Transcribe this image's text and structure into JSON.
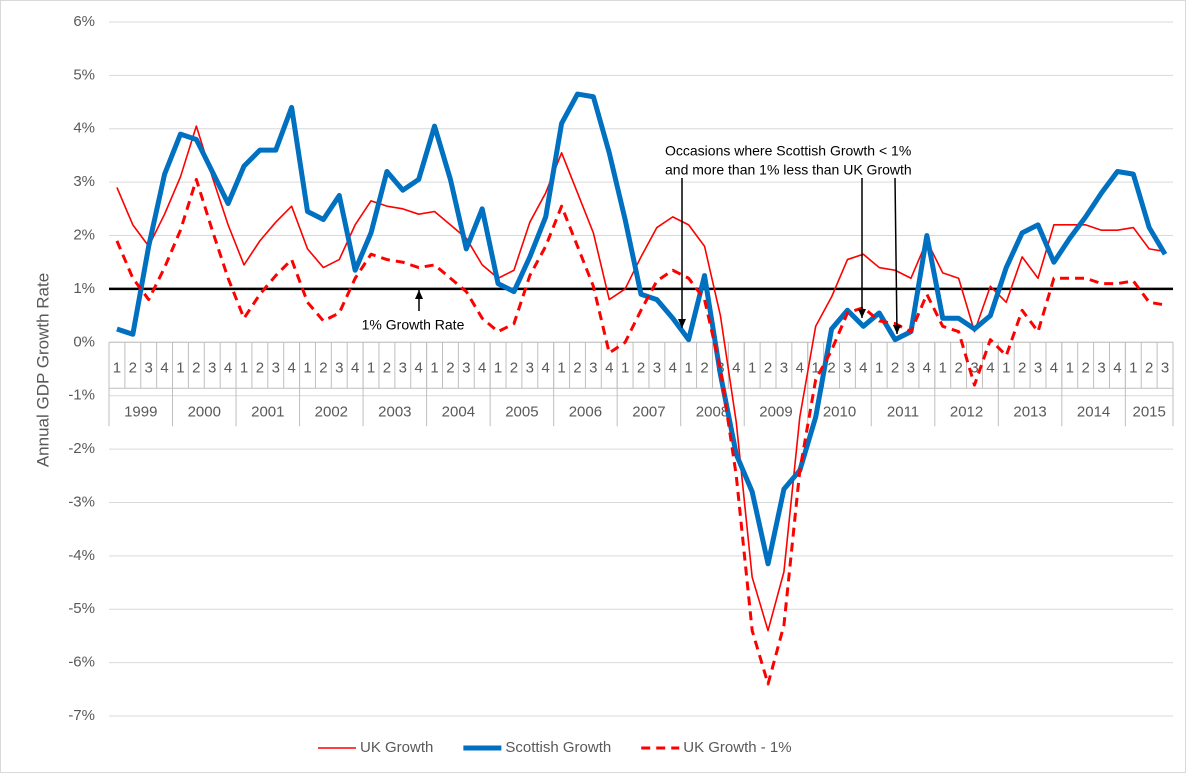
{
  "chart_data": {
    "type": "line",
    "y_axis_label": "Annual GDP Growth Rate",
    "categories": [
      "1",
      "2",
      "3",
      "4",
      "1",
      "2",
      "3",
      "4",
      "1",
      "2",
      "3",
      "4",
      "1",
      "2",
      "3",
      "4",
      "1",
      "2",
      "3",
      "4",
      "1",
      "2",
      "3",
      "4",
      "1",
      "2",
      "3",
      "4",
      "1",
      "2",
      "3",
      "4",
      "1",
      "2",
      "3",
      "4",
      "1",
      "2",
      "3",
      "4",
      "1",
      "2",
      "3",
      "4",
      "1",
      "2",
      "3",
      "4",
      "1",
      "2",
      "3",
      "4",
      "1",
      "2",
      "3",
      "4",
      "1",
      "2",
      "3",
      "4",
      "1",
      "2",
      "3",
      "4",
      "1",
      "2",
      "3"
    ],
    "years": [
      "1999",
      "2000",
      "2001",
      "2002",
      "2003",
      "2004",
      "2005",
      "2006",
      "2007",
      "2008",
      "2009",
      "2010",
      "2011",
      "2012",
      "2013",
      "2014",
      "2015"
    ],
    "series": [
      {
        "name": "UK Growth",
        "color": "#ff0000",
        "style": "thin",
        "values": [
          2.9,
          2.2,
          1.8,
          2.4,
          3.1,
          4.05,
          3.1,
          2.2,
          1.45,
          1.9,
          2.25,
          2.55,
          1.75,
          1.4,
          1.55,
          2.2,
          2.65,
          2.55,
          2.5,
          2.4,
          2.45,
          2.2,
          1.95,
          1.45,
          1.2,
          1.35,
          2.25,
          2.8,
          3.55,
          2.8,
          2.05,
          0.8,
          1.0,
          1.6,
          2.15,
          2.35,
          2.2,
          1.8,
          0.5,
          -1.5,
          -4.4,
          -5.4,
          -4.3,
          -1.4,
          0.3,
          0.85,
          1.55,
          1.65,
          1.4,
          1.35,
          1.2,
          1.9,
          1.3,
          1.2,
          0.2,
          1.05,
          0.75,
          1.6,
          1.2,
          2.2,
          2.2,
          2.2,
          2.1,
          2.1,
          2.15,
          1.75,
          1.7
        ]
      },
      {
        "name": "Scottish Growth",
        "color": "#0070c0",
        "style": "thick",
        "values": [
          0.25,
          0.15,
          1.8,
          3.15,
          3.9,
          3.8,
          3.2,
          2.6,
          3.3,
          3.6,
          3.6,
          4.4,
          2.45,
          2.3,
          2.75,
          1.35,
          2.05,
          3.2,
          2.85,
          3.05,
          4.05,
          3.05,
          1.75,
          2.5,
          1.1,
          0.95,
          1.6,
          2.35,
          4.1,
          4.65,
          4.6,
          3.55,
          2.3,
          0.9,
          0.8,
          0.45,
          0.05,
          1.25,
          -0.6,
          -2.1,
          -2.8,
          -4.15,
          -2.75,
          -2.4,
          -1.4,
          0.25,
          0.6,
          0.3,
          0.55,
          0.05,
          0.2,
          2.0,
          0.45,
          0.45,
          0.25,
          0.5,
          1.4,
          2.05,
          2.2,
          1.5,
          1.95,
          2.35,
          2.8,
          3.2,
          3.15,
          2.15,
          1.65
        ]
      },
      {
        "name": "UK Growth - 1%",
        "color": "#ff0000",
        "style": "dashed",
        "values": [
          1.9,
          1.2,
          0.8,
          1.4,
          2.1,
          3.05,
          2.1,
          1.2,
          0.45,
          0.9,
          1.25,
          1.55,
          0.75,
          0.4,
          0.55,
          1.2,
          1.65,
          1.55,
          1.5,
          1.4,
          1.45,
          1.2,
          0.95,
          0.45,
          0.2,
          0.35,
          1.25,
          1.8,
          2.55,
          1.8,
          1.05,
          -0.2,
          0.0,
          0.6,
          1.15,
          1.35,
          1.2,
          0.8,
          -0.5,
          -2.5,
          -5.4,
          -6.4,
          -5.3,
          -2.4,
          -0.7,
          -0.15,
          0.55,
          0.65,
          0.4,
          0.35,
          0.2,
          0.9,
          0.3,
          0.2,
          -0.8,
          0.05,
          -0.25,
          0.6,
          0.2,
          1.2,
          1.2,
          1.2,
          1.1,
          1.1,
          1.15,
          0.75,
          0.7
        ]
      }
    ],
    "reference_line": {
      "value": 1,
      "color": "#000000"
    },
    "annotations": [
      [
        "1% Growth Rate"
      ],
      [
        "Occasions where Scottish Growth < 1%",
        "and more than 1% less than UK Growth"
      ]
    ],
    "ylim": [
      -7,
      6
    ],
    "yticks": [
      {
        "value": -7,
        "label": "-7%"
      },
      {
        "value": -6,
        "label": "-6%"
      },
      {
        "value": -5,
        "label": "-5%"
      },
      {
        "value": -4,
        "label": "-4%"
      },
      {
        "value": -3,
        "label": "-3%"
      },
      {
        "value": -2,
        "label": "-2%"
      },
      {
        "value": -1,
        "label": "-1%"
      },
      {
        "value": 0,
        "label": "0%"
      },
      {
        "value": 1,
        "label": "1%"
      },
      {
        "value": 2,
        "label": "2%"
      },
      {
        "value": 3,
        "label": "3%"
      },
      {
        "value": 4,
        "label": "4%"
      },
      {
        "value": 5,
        "label": "5%"
      },
      {
        "value": 6,
        "label": "6%"
      }
    ],
    "grid": true,
    "legend": "bottom"
  }
}
